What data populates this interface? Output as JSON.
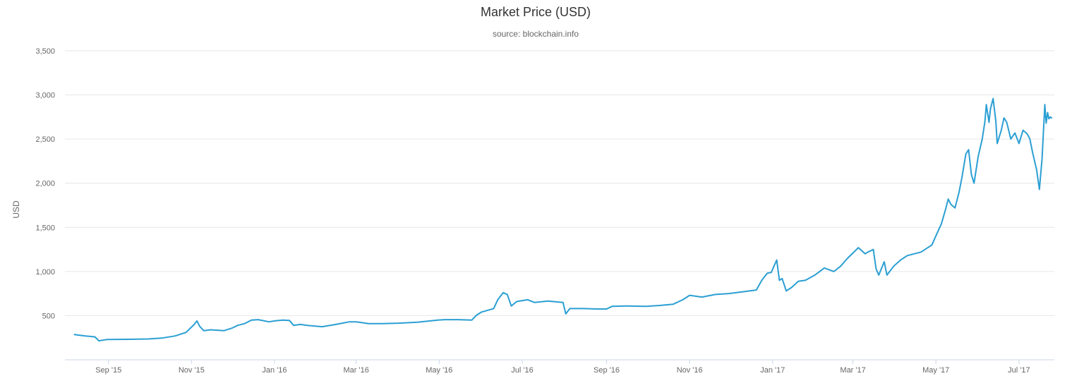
{
  "chart_data": {
    "type": "line",
    "title": "Market Price (USD)",
    "subtitle": "source: blockchain.info",
    "ylabel": "USD",
    "xlabel": "",
    "ylim": [
      0,
      3500
    ],
    "xlim": [
      "2015-07-31",
      "2017-07-27"
    ],
    "y_ticks": [
      500,
      1000,
      1500,
      2000,
      2500,
      3000,
      3500
    ],
    "y_tick_labels": [
      "500",
      "1,000",
      "1,500",
      "2,000",
      "2,500",
      "3,000",
      "3,500"
    ],
    "x_ticks": [
      "2015-09-01",
      "2015-11-01",
      "2016-01-01",
      "2016-03-01",
      "2016-05-01",
      "2016-07-01",
      "2016-09-01",
      "2016-11-01",
      "2017-01-01",
      "2017-03-01",
      "2017-05-01",
      "2017-07-01"
    ],
    "x_tick_labels": [
      "Sep '15",
      "Nov '15",
      "Jan '16",
      "Mar '16",
      "May '16",
      "Jul '16",
      "Sep '16",
      "Nov '16",
      "Jan '17",
      "Mar '17",
      "May '17",
      "Jul '17"
    ],
    "grid": true,
    "line_color": "#2b9fd3",
    "series": [
      {
        "points": [
          [
            "2015-08-07",
            285
          ],
          [
            "2015-08-15",
            270
          ],
          [
            "2015-08-22",
            260
          ],
          [
            "2015-08-25",
            215
          ],
          [
            "2015-08-31",
            230
          ],
          [
            "2015-09-15",
            232
          ],
          [
            "2015-09-30",
            236
          ],
          [
            "2015-10-10",
            245
          ],
          [
            "2015-10-20",
            270
          ],
          [
            "2015-10-28",
            310
          ],
          [
            "2015-11-03",
            400
          ],
          [
            "2015-11-05",
            440
          ],
          [
            "2015-11-07",
            380
          ],
          [
            "2015-11-10",
            330
          ],
          [
            "2015-11-15",
            340
          ],
          [
            "2015-11-25",
            330
          ],
          [
            "2015-12-01",
            360
          ],
          [
            "2015-12-05",
            390
          ],
          [
            "2015-12-10",
            410
          ],
          [
            "2015-12-15",
            450
          ],
          [
            "2015-12-20",
            455
          ],
          [
            "2015-12-28",
            430
          ],
          [
            "2016-01-01",
            440
          ],
          [
            "2016-01-07",
            450
          ],
          [
            "2016-01-12",
            445
          ],
          [
            "2016-01-15",
            390
          ],
          [
            "2016-01-20",
            400
          ],
          [
            "2016-01-25",
            390
          ],
          [
            "2016-02-05",
            375
          ],
          [
            "2016-02-15",
            400
          ],
          [
            "2016-02-25",
            430
          ],
          [
            "2016-03-01",
            430
          ],
          [
            "2016-03-10",
            410
          ],
          [
            "2016-03-20",
            410
          ],
          [
            "2016-04-01",
            415
          ],
          [
            "2016-04-15",
            425
          ],
          [
            "2016-04-30",
            450
          ],
          [
            "2016-05-05",
            455
          ],
          [
            "2016-05-15",
            455
          ],
          [
            "2016-05-25",
            450
          ],
          [
            "2016-05-28",
            500
          ],
          [
            "2016-06-01",
            540
          ],
          [
            "2016-06-10",
            580
          ],
          [
            "2016-06-13",
            680
          ],
          [
            "2016-06-17",
            760
          ],
          [
            "2016-06-20",
            740
          ],
          [
            "2016-06-23",
            610
          ],
          [
            "2016-06-27",
            660
          ],
          [
            "2016-07-05",
            680
          ],
          [
            "2016-07-10",
            650
          ],
          [
            "2016-07-20",
            665
          ],
          [
            "2016-07-31",
            650
          ],
          [
            "2016-08-02",
            520
          ],
          [
            "2016-08-05",
            580
          ],
          [
            "2016-08-15",
            580
          ],
          [
            "2016-08-25",
            575
          ],
          [
            "2016-09-01",
            575
          ],
          [
            "2016-09-05",
            605
          ],
          [
            "2016-09-15",
            610
          ],
          [
            "2016-09-30",
            605
          ],
          [
            "2016-10-10",
            615
          ],
          [
            "2016-10-20",
            630
          ],
          [
            "2016-10-27",
            680
          ],
          [
            "2016-11-01",
            730
          ],
          [
            "2016-11-10",
            710
          ],
          [
            "2016-11-20",
            740
          ],
          [
            "2016-11-30",
            750
          ],
          [
            "2016-12-10",
            770
          ],
          [
            "2016-12-20",
            790
          ],
          [
            "2016-12-24",
            900
          ],
          [
            "2016-12-28",
            980
          ],
          [
            "2016-12-31",
            990
          ],
          [
            "2017-01-02",
            1060
          ],
          [
            "2017-01-04",
            1130
          ],
          [
            "2017-01-06",
            900
          ],
          [
            "2017-01-08",
            920
          ],
          [
            "2017-01-11",
            780
          ],
          [
            "2017-01-15",
            820
          ],
          [
            "2017-01-20",
            890
          ],
          [
            "2017-01-25",
            900
          ],
          [
            "2017-02-01",
            960
          ],
          [
            "2017-02-08",
            1040
          ],
          [
            "2017-02-15",
            1000
          ],
          [
            "2017-02-20",
            1060
          ],
          [
            "2017-02-25",
            1150
          ],
          [
            "2017-03-01",
            1210
          ],
          [
            "2017-03-05",
            1270
          ],
          [
            "2017-03-10",
            1200
          ],
          [
            "2017-03-12",
            1220
          ],
          [
            "2017-03-16",
            1250
          ],
          [
            "2017-03-18",
            1030
          ],
          [
            "2017-03-20",
            960
          ],
          [
            "2017-03-24",
            1110
          ],
          [
            "2017-03-26",
            960
          ],
          [
            "2017-03-31",
            1060
          ],
          [
            "2017-04-05",
            1130
          ],
          [
            "2017-04-10",
            1180
          ],
          [
            "2017-04-20",
            1220
          ],
          [
            "2017-04-28",
            1300
          ],
          [
            "2017-05-02",
            1440
          ],
          [
            "2017-05-05",
            1540
          ],
          [
            "2017-05-08",
            1700
          ],
          [
            "2017-05-10",
            1820
          ],
          [
            "2017-05-12",
            1760
          ],
          [
            "2017-05-15",
            1720
          ],
          [
            "2017-05-18",
            1900
          ],
          [
            "2017-05-20",
            2060
          ],
          [
            "2017-05-23",
            2330
          ],
          [
            "2017-05-25",
            2380
          ],
          [
            "2017-05-27",
            2100
          ],
          [
            "2017-05-29",
            2000
          ],
          [
            "2017-06-01",
            2300
          ],
          [
            "2017-06-04",
            2500
          ],
          [
            "2017-06-06",
            2700
          ],
          [
            "2017-06-07",
            2890
          ],
          [
            "2017-06-09",
            2690
          ],
          [
            "2017-06-10",
            2840
          ],
          [
            "2017-06-12",
            2960
          ],
          [
            "2017-06-14",
            2700
          ],
          [
            "2017-06-15",
            2450
          ],
          [
            "2017-06-18",
            2600
          ],
          [
            "2017-06-20",
            2740
          ],
          [
            "2017-06-22",
            2690
          ],
          [
            "2017-06-25",
            2500
          ],
          [
            "2017-06-28",
            2570
          ],
          [
            "2017-07-01",
            2450
          ],
          [
            "2017-07-04",
            2600
          ],
          [
            "2017-07-07",
            2560
          ],
          [
            "2017-07-09",
            2500
          ],
          [
            "2017-07-11",
            2350
          ],
          [
            "2017-07-14",
            2150
          ],
          [
            "2017-07-16",
            1930
          ],
          [
            "2017-07-18",
            2280
          ],
          [
            "2017-07-20",
            2890
          ],
          [
            "2017-07-21",
            2680
          ],
          [
            "2017-07-22",
            2800
          ],
          [
            "2017-07-23",
            2730
          ],
          [
            "2017-07-24",
            2750
          ],
          [
            "2017-07-25",
            2740
          ]
        ]
      }
    ]
  }
}
